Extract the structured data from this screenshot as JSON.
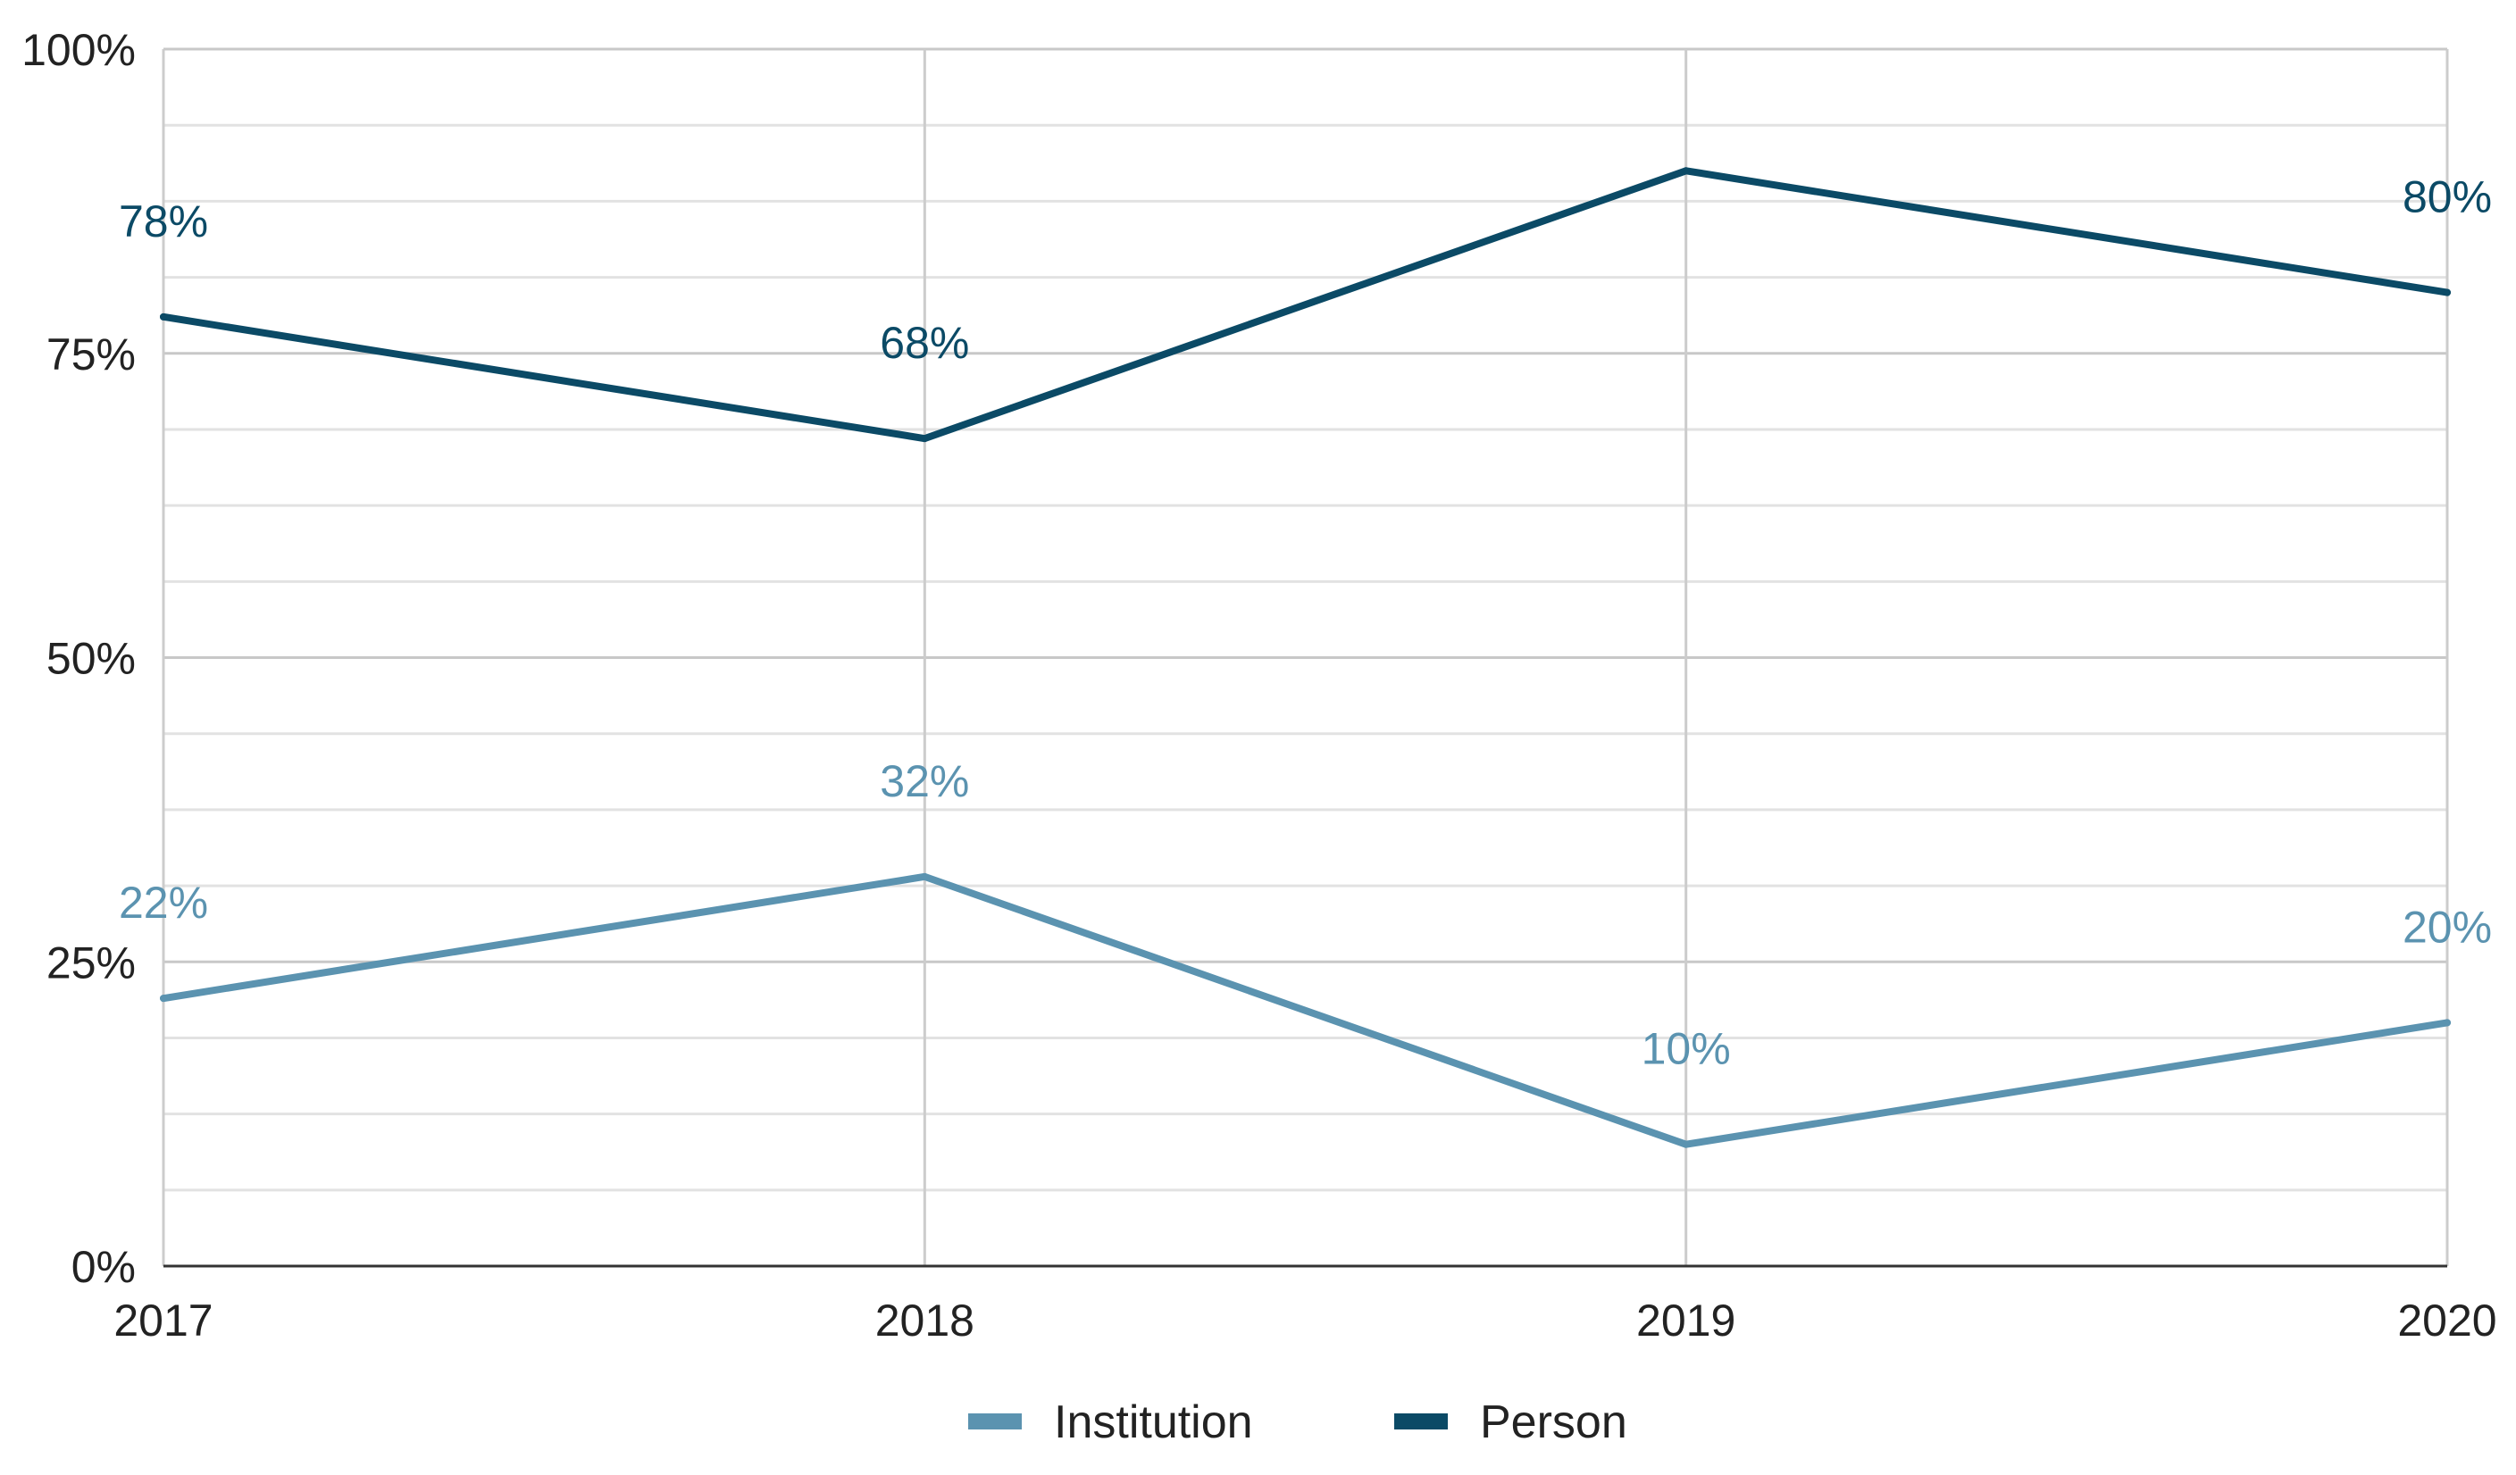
{
  "chart_data": {
    "type": "line",
    "title": "",
    "xlabel": "",
    "ylabel": "",
    "categories": [
      "2017",
      "2018",
      "2019",
      "2020"
    ],
    "ylim": [
      0,
      100
    ],
    "y_ticks": [
      0,
      25,
      50,
      75,
      100
    ],
    "y_tick_labels": [
      "0%",
      "25%",
      "50%",
      "75%",
      "100%"
    ],
    "minor_gridlines": true,
    "legend_position": "bottom",
    "series": [
      {
        "name": "Institution",
        "color": "#5b93b0",
        "values": [
          22,
          32,
          10,
          20
        ],
        "data_labels": [
          "22%",
          "32%",
          "10%",
          "20%"
        ]
      },
      {
        "name": "Person",
        "color": "#0b4a66",
        "values": [
          78,
          68,
          90,
          80
        ],
        "data_labels": [
          "78%",
          "68%",
          "",
          "80%"
        ]
      }
    ],
    "axis_color": "#333333",
    "grid_color": "#d6d6d6"
  }
}
